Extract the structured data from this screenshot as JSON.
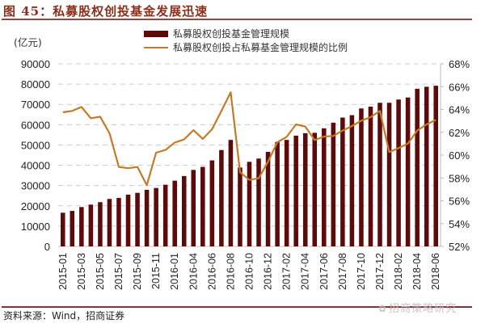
{
  "figure": {
    "title": "图 45：私募股权创投基金发展迅速",
    "unit_label": "(亿元)",
    "source": "资料来源：Wind，招商证券",
    "watermark": "招商策略研究",
    "colors": {
      "bar": "#5c0a0a",
      "line": "#c67a25",
      "title": "#8b2e1a",
      "rule": "#8a4b45",
      "grid": "#cccccc"
    }
  },
  "chart_data": {
    "type": "bar+line",
    "title": "图 45：私募股权创投基金发展迅速",
    "xlabel": "",
    "ylabel": "(亿元)",
    "y2label": "",
    "ylim": [
      0,
      90000
    ],
    "y2lim": [
      0.52,
      0.68
    ],
    "yticks": [
      0,
      10000,
      20000,
      30000,
      40000,
      50000,
      60000,
      70000,
      80000,
      90000
    ],
    "y2ticks": [
      "52%",
      "54%",
      "56%",
      "58%",
      "60%",
      "62%",
      "64%",
      "66%",
      "68%"
    ],
    "grid": "horizontal dashed (left axis)",
    "legend_position": "top-center",
    "categories": [
      "2015-01",
      "2015-02",
      "2015-03",
      "2015-04",
      "2015-05",
      "2015-06",
      "2015-07",
      "2015-08",
      "2015-09",
      "2015-10",
      "2015-11",
      "2015-12",
      "2016-01",
      "2016-03",
      "2016-04",
      "2016-05",
      "2016-06",
      "2016-07",
      "2016-08",
      "2016-09",
      "2016-10",
      "2016-11",
      "2016-12",
      "2017-01",
      "2017-02",
      "2017-03",
      "2017-04",
      "2017-05",
      "2017-06",
      "2017-07",
      "2017-08",
      "2017-09",
      "2017-10",
      "2017-11",
      "2017-12",
      "2018-01",
      "2018-02",
      "2018-03",
      "2018-04",
      "2018-05",
      "2018-06"
    ],
    "xtick_labels": [
      "2015-01",
      "2015-03",
      "2015-05",
      "2015-07",
      "2015-09",
      "2015-11",
      "2016-01",
      "2016-04",
      "2016-06",
      "2016-08",
      "2016-10",
      "2016-12",
      "2017-02",
      "2017-04",
      "2017-06",
      "2017-08",
      "2017-10",
      "2017-12",
      "2018-02",
      "2018-04",
      "2018-06"
    ],
    "series": [
      {
        "name": "私募股权创投基金管理规模",
        "type": "bar",
        "axis": "left",
        "color": "#5c0a0a",
        "values": [
          16600,
          17500,
          19400,
          20600,
          21800,
          23400,
          23900,
          25500,
          26400,
          27900,
          28800,
          30400,
          32400,
          34700,
          37700,
          39200,
          42400,
          47500,
          52500,
          38900,
          41700,
          43300,
          46600,
          51500,
          52500,
          54600,
          55800,
          56000,
          58200,
          61000,
          63500,
          64700,
          68000,
          68900,
          70800,
          70800,
          72400,
          73400,
          77700,
          78700,
          79200
        ]
      },
      {
        "name": "私募股权创投占私募基金管理规模的比例",
        "type": "line",
        "axis": "right",
        "color": "#c67a25",
        "values": [
          0.6375,
          0.6387,
          0.6422,
          0.6323,
          0.6337,
          0.6191,
          0.5896,
          0.5885,
          0.5896,
          0.5736,
          0.6021,
          0.6045,
          0.611,
          0.6137,
          0.6219,
          0.6142,
          0.6227,
          0.6387,
          0.655,
          0.5849,
          0.5783,
          0.5797,
          0.5943,
          0.6113,
          0.616,
          0.6269,
          0.625,
          0.6132,
          0.6163,
          0.6168,
          0.6215,
          0.6255,
          0.6302,
          0.6333,
          0.6387,
          0.6026,
          0.6062,
          0.6101,
          0.6215,
          0.6269,
          0.6309
        ]
      }
    ]
  }
}
